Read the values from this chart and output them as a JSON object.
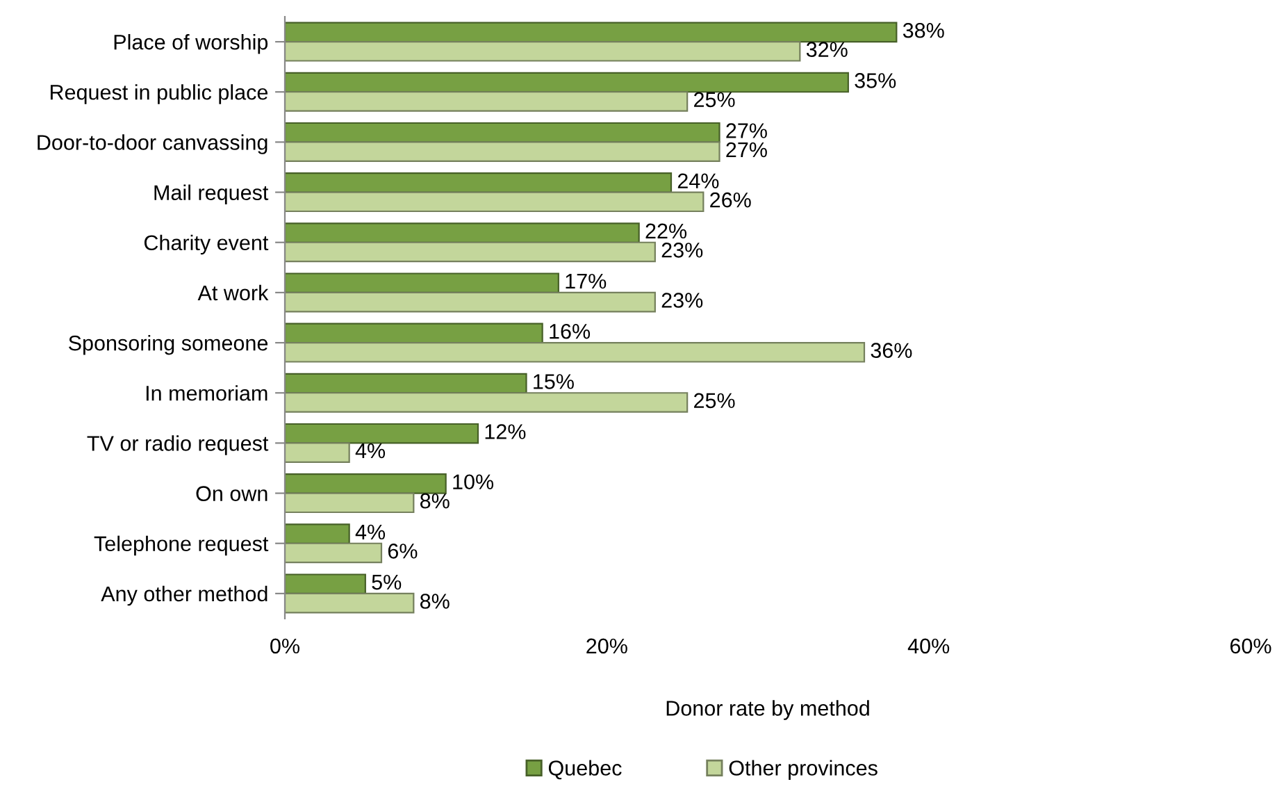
{
  "chart_data": {
    "type": "bar",
    "orientation": "horizontal",
    "xlabel": "Donor rate by method",
    "categories": [
      "Place of worship",
      "Request in public place",
      "Door-to-door canvassing",
      "Mail request",
      "Charity event",
      "At work",
      "Sponsoring someone",
      "In memoriam",
      "TV or radio request",
      "On own",
      "Telephone request",
      "Any other method"
    ],
    "series": [
      {
        "name": "Quebec",
        "color": "#77a043",
        "values": [
          38,
          35,
          27,
          24,
          22,
          17,
          16,
          15,
          12,
          10,
          4,
          5
        ],
        "value_labels": [
          "38%",
          "35%",
          "27%",
          "24%",
          "22%",
          "17%",
          "16%",
          "15%",
          "12%",
          "10%",
          "4%",
          "5%"
        ]
      },
      {
        "name": "Other provinces",
        "color": "#c3d69b",
        "values": [
          32,
          25,
          27,
          26,
          23,
          23,
          36,
          25,
          4,
          8,
          6,
          8
        ],
        "value_labels": [
          "32%",
          "25%",
          "27%",
          "26%",
          "23%",
          "23%",
          "36%",
          "25%",
          "4%",
          "8%",
          "6%",
          "8%"
        ]
      }
    ],
    "xlim": [
      0,
      60
    ],
    "xticks": [
      {
        "value": 0,
        "label": "0%"
      },
      {
        "value": 20,
        "label": "20%"
      },
      {
        "value": 40,
        "label": "40%"
      },
      {
        "value": 60,
        "label": "60%"
      }
    ],
    "grid": false,
    "legend": "bottom"
  }
}
